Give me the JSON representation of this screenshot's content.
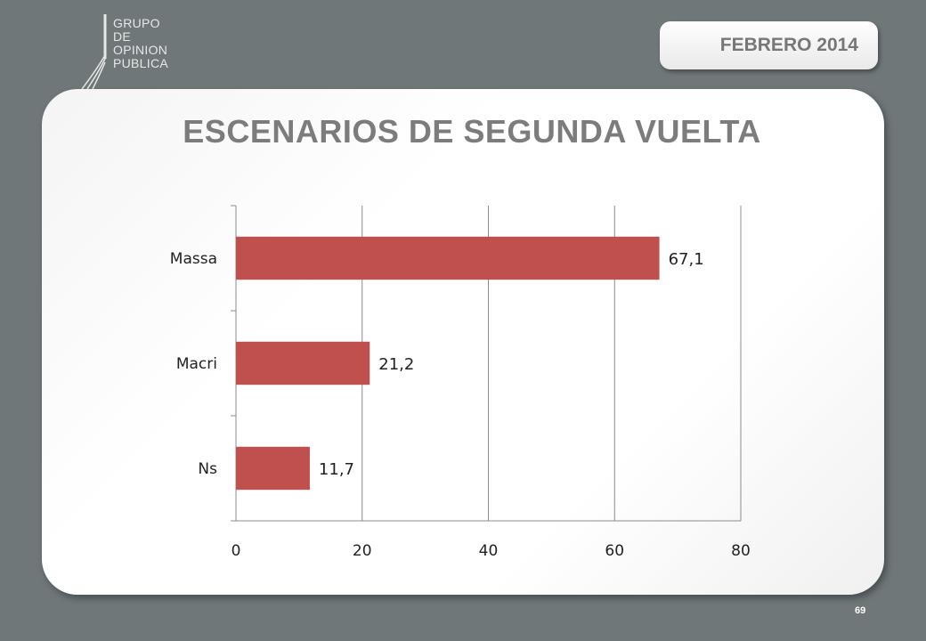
{
  "header": {
    "logo_lines": [
      "GRUPO",
      "DE",
      "OPINION",
      "PUBLICA"
    ],
    "date": "FEBRERO 2014"
  },
  "page_title": "ESCENARIOS DE SEGUNDA VUELTA",
  "page_number": "69",
  "chart_data": {
    "type": "bar",
    "orientation": "horizontal",
    "categories": [
      "Massa",
      "Macri",
      "Ns"
    ],
    "values": [
      67.1,
      21.2,
      11.7
    ],
    "value_labels": [
      "67,1",
      "21,2",
      "11,7"
    ],
    "xlim": [
      0,
      80
    ],
    "x_ticks": [
      0,
      20,
      40,
      60,
      80
    ],
    "grid": true,
    "bar_color": "#c0504d"
  }
}
